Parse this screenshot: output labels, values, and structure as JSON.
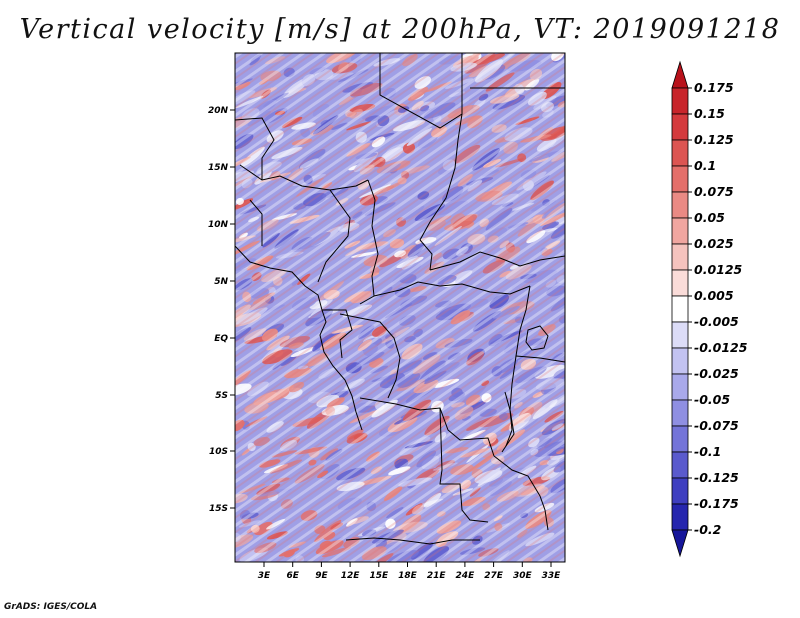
{
  "title": "Vertical velocity [m/s] at 200hPa, VT: 2019091218",
  "credit": "GrADS: IGES/COLA",
  "map": {
    "lat_labels": [
      "20N",
      "15N",
      "10N",
      "5N",
      "EQ",
      "5S",
      "10S",
      "15S"
    ],
    "lon_labels": [
      "3E",
      "6E",
      "9E",
      "12E",
      "15E",
      "18E",
      "21E",
      "24E",
      "27E",
      "30E",
      "33E"
    ]
  },
  "colorbar": {
    "levels": [
      "0.175",
      "0.15",
      "0.125",
      "0.1",
      "0.075",
      "0.05",
      "0.025",
      "0.0125",
      "0.005",
      "-0.005",
      "-0.0125",
      "-0.025",
      "-0.05",
      "-0.075",
      "-0.1",
      "-0.125",
      "-0.175",
      "-0.2"
    ],
    "colors": [
      "#b8121b",
      "#c8252b",
      "#d43a3d",
      "#dc5552",
      "#e46f6a",
      "#ea8a84",
      "#f0a6a0",
      "#f5c3be",
      "#fadcd9",
      "#ffffff",
      "#dcdcf7",
      "#c3c3f1",
      "#a9a9ea",
      "#8f8fe2",
      "#7474d8",
      "#5a5acd",
      "#3f3fc0",
      "#2626ae",
      "#16169a"
    ]
  }
}
